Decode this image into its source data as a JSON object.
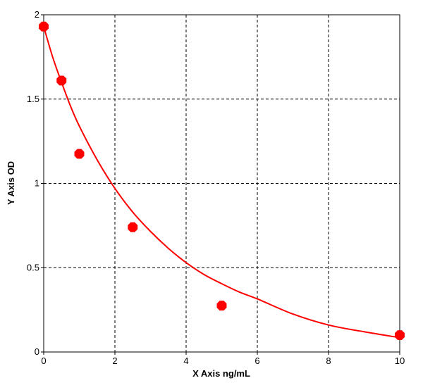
{
  "chart_data": {
    "type": "scatter",
    "xlabel": "X Axis ng/mL",
    "ylabel": "Y Axis OD",
    "xlim": [
      0,
      10
    ],
    "ylim": [
      0,
      2
    ],
    "x_ticks": [
      0,
      2,
      4,
      6,
      8,
      10
    ],
    "y_ticks": [
      0,
      0.5,
      1,
      1.5,
      2
    ],
    "x_tick_labels": [
      "0",
      "2",
      "4",
      "6",
      "8",
      "10"
    ],
    "y_tick_labels": [
      "0",
      "0.5",
      "1",
      "1.5",
      "2"
    ],
    "grid": true,
    "grid_style": "dashed",
    "series": [
      {
        "type": "scatter",
        "x": [
          0,
          0.5,
          1,
          2.5,
          5,
          10
        ],
        "y": [
          1.93,
          1.61,
          1.175,
          0.74,
          0.275,
          0.1
        ],
        "color": "#ff0000"
      },
      {
        "type": "line",
        "fit": "four-parameter logistic",
        "x": [
          0,
          0.25,
          0.5,
          0.75,
          1,
          1.5,
          2,
          2.5,
          3,
          3.5,
          4,
          4.5,
          5,
          5.5,
          6,
          7,
          8,
          9,
          10
        ],
        "y": [
          1.93,
          1.75,
          1.6,
          1.46,
          1.34,
          1.14,
          0.97,
          0.83,
          0.715,
          0.615,
          0.53,
          0.46,
          0.405,
          0.355,
          0.315,
          0.225,
          0.16,
          0.12,
          0.085
        ],
        "color": "#ff0000"
      }
    ]
  }
}
